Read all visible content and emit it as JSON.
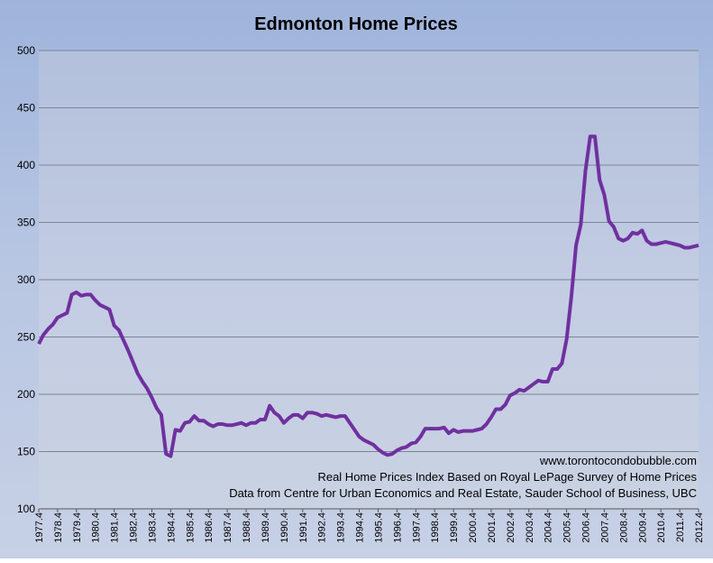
{
  "chart_data": {
    "type": "line",
    "title": "Edmonton Home Prices",
    "categories": [
      "1977.4",
      null,
      null,
      null,
      "1978.4",
      null,
      null,
      null,
      "1979.4",
      null,
      null,
      null,
      "1980.4",
      null,
      null,
      null,
      "1981.4",
      null,
      null,
      null,
      "1982.4",
      null,
      null,
      null,
      "1983.4",
      null,
      null,
      null,
      "1984.4",
      null,
      null,
      null,
      "1985.4",
      null,
      null,
      null,
      "1986.4",
      null,
      null,
      null,
      "1987.4",
      null,
      null,
      null,
      "1988.4",
      null,
      null,
      null,
      "1989.4",
      null,
      null,
      null,
      "1990.4",
      null,
      null,
      null,
      "1991.4",
      null,
      null,
      null,
      "1992.4",
      null,
      null,
      null,
      "1993.4",
      null,
      null,
      null,
      "1994.4",
      null,
      null,
      null,
      "1995.4",
      null,
      null,
      null,
      "1996.4",
      null,
      null,
      null,
      "1997.4",
      null,
      null,
      null,
      "1998.4",
      null,
      null,
      null,
      "1999.4",
      null,
      null,
      null,
      "2000.4",
      null,
      null,
      null,
      "2001.4",
      null,
      null,
      null,
      "2002.4",
      null,
      null,
      null,
      "2003.4",
      null,
      null,
      null,
      "2004.4",
      null,
      null,
      null,
      "2005.4",
      null,
      null,
      null,
      "2006.4",
      null,
      null,
      null,
      "2007.4",
      null,
      null,
      null,
      "2008.4",
      null,
      null,
      null,
      "2009.4",
      null,
      null,
      null,
      "2010.4",
      null,
      null,
      null,
      "2011.4",
      null,
      null,
      null,
      "2012.4"
    ],
    "values": [
      244,
      252,
      257,
      261,
      267,
      269,
      271,
      287,
      289,
      286,
      287,
      287,
      282,
      278,
      276,
      274,
      260,
      256,
      247,
      238,
      228,
      218,
      211,
      205,
      197,
      188,
      182,
      148,
      146,
      169,
      168,
      175,
      176,
      181,
      177,
      177,
      174,
      172,
      174,
      174,
      173,
      173,
      174,
      175,
      173,
      175,
      175,
      178,
      178,
      190,
      184,
      181,
      175,
      179,
      182,
      182,
      179,
      184,
      184,
      183,
      181,
      182,
      181,
      180,
      181,
      181,
      175,
      169,
      163,
      160,
      158,
      156,
      152,
      149,
      147,
      148,
      151,
      153,
      154,
      157,
      158,
      163,
      170,
      170,
      170,
      170,
      171,
      166,
      169,
      167,
      168,
      168,
      168,
      169,
      170,
      174,
      180,
      187,
      187,
      191,
      199,
      201,
      204,
      203,
      206,
      209,
      212,
      211,
      211,
      222,
      222,
      227,
      248,
      285,
      330,
      348,
      395,
      425,
      425,
      387,
      374,
      351,
      346,
      336,
      334,
      336,
      341,
      340,
      343,
      334,
      331,
      331,
      332,
      333,
      332,
      331,
      330,
      328,
      328,
      329,
      330
    ],
    "color": "#7030a0",
    "ylim": [
      100,
      500
    ],
    "yticks": [
      100,
      150,
      200,
      250,
      300,
      350,
      400,
      450,
      500
    ],
    "grid": true,
    "annotations": [
      "www.torontocondobubble.com",
      "Real Home Prices Index Based on Royal LePage Survey of Home Prices",
      "Data from Centre for Urban Economics and Real Estate, Sauder School of Business, UBC"
    ]
  }
}
